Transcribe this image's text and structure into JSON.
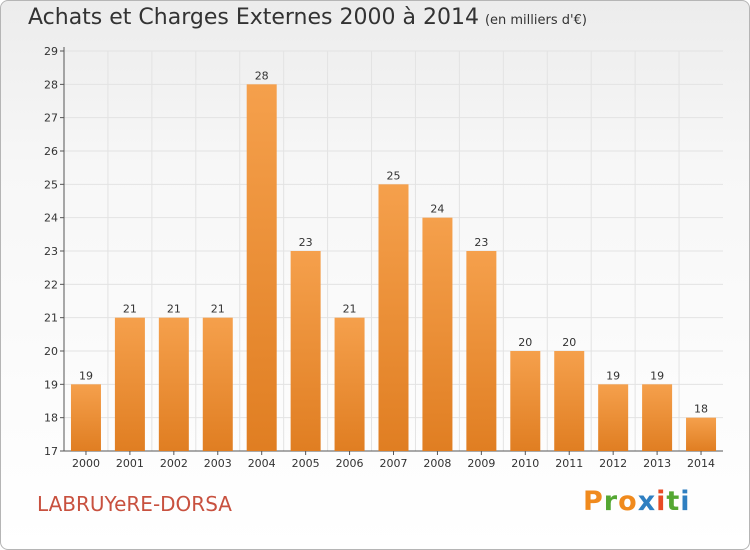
{
  "chart_data": {
    "type": "bar",
    "title": "Achats et Charges Externes 2000 à 2014",
    "subtitle": "(en milliers d'€)",
    "categories": [
      "2000",
      "2001",
      "2002",
      "2003",
      "2004",
      "2005",
      "2006",
      "2007",
      "2008",
      "2009",
      "2010",
      "2011",
      "2012",
      "2013",
      "2014"
    ],
    "values": [
      19,
      21,
      21,
      21,
      28,
      23,
      21,
      25,
      24,
      23,
      20,
      20,
      19,
      19,
      18
    ],
    "ylim": [
      17,
      29
    ],
    "yticks": [
      17,
      18,
      19,
      20,
      21,
      22,
      23,
      24,
      25,
      26,
      27,
      28,
      29
    ],
    "xlabel": "",
    "ylabel": "",
    "grid": true,
    "bar_color": "#f5a04c",
    "bar_color_dark": "#e07e22"
  },
  "commune": "LABRUYeRE-DORSA",
  "logo": {
    "letters": [
      "P",
      "r",
      "o",
      "x",
      "i",
      "t",
      "i"
    ],
    "colors": [
      "#f08a1d",
      "#54a732",
      "#f08a1d",
      "#2f7fc1",
      "#e84b24",
      "#54a732",
      "#2f7fc1"
    ]
  }
}
